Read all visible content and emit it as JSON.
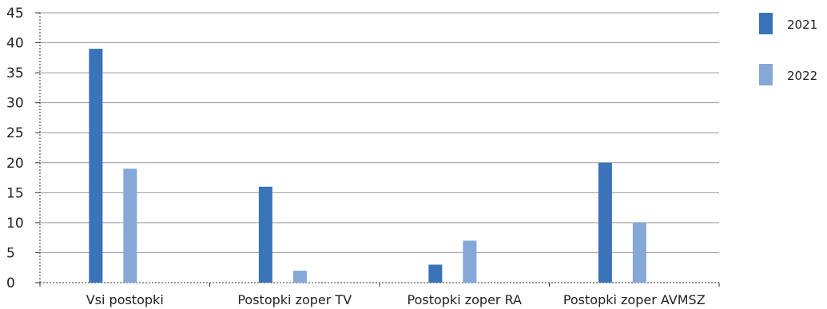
{
  "chart_data": {
    "type": "bar",
    "categories": [
      "Vsi postopki",
      "Postopki zoper TV",
      "Postopki zoper RA",
      "Postopki zoper AVMSZ"
    ],
    "series": [
      {
        "name": "2021",
        "values": [
          39,
          16,
          3,
          20
        ],
        "color": "#3b73b9"
      },
      {
        "name": "2022",
        "values": [
          19,
          2,
          7,
          10
        ],
        "color": "#85a8d8"
      }
    ],
    "ylim": [
      0,
      45
    ],
    "yticks": [
      "0",
      "5",
      "10",
      "15",
      "20",
      "25",
      "30",
      "35",
      "40",
      "45"
    ],
    "grid": true,
    "legend_position": "right"
  }
}
